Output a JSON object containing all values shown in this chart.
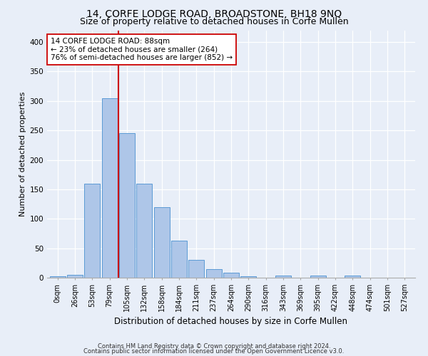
{
  "title": "14, CORFE LODGE ROAD, BROADSTONE, BH18 9NQ",
  "subtitle": "Size of property relative to detached houses in Corfe Mullen",
  "xlabel": "Distribution of detached houses by size in Corfe Mullen",
  "ylabel": "Number of detached properties",
  "footnote1": "Contains HM Land Registry data © Crown copyright and database right 2024.",
  "footnote2": "Contains public sector information licensed under the Open Government Licence v3.0.",
  "bin_labels": [
    "0sqm",
    "26sqm",
    "53sqm",
    "79sqm",
    "105sqm",
    "132sqm",
    "158sqm",
    "184sqm",
    "211sqm",
    "237sqm",
    "264sqm",
    "290sqm",
    "316sqm",
    "343sqm",
    "369sqm",
    "395sqm",
    "422sqm",
    "448sqm",
    "474sqm",
    "501sqm",
    "527sqm"
  ],
  "bar_values": [
    3,
    5,
    160,
    305,
    245,
    160,
    120,
    63,
    30,
    15,
    8,
    3,
    0,
    4,
    0,
    4,
    0,
    4,
    0,
    0,
    0
  ],
  "bar_color": "#aec6e8",
  "bar_edgecolor": "#5b9bd5",
  "vline_x": 3.5,
  "vline_color": "#cc0000",
  "annotation_text": "14 CORFE LODGE ROAD: 88sqm\n← 23% of detached houses are smaller (264)\n76% of semi-detached houses are larger (852) →",
  "annotation_box_color": "#ffffff",
  "annotation_box_edgecolor": "#cc0000",
  "ylim": [
    0,
    420
  ],
  "yticks": [
    0,
    50,
    100,
    150,
    200,
    250,
    300,
    350,
    400
  ],
  "background_color": "#e8eef8",
  "plot_background": "#e8eef8",
  "grid_color": "#ffffff",
  "title_fontsize": 10,
  "subtitle_fontsize": 9,
  "xlabel_fontsize": 8.5,
  "ylabel_fontsize": 8,
  "tick_fontsize": 7,
  "annot_fontsize": 7.5
}
